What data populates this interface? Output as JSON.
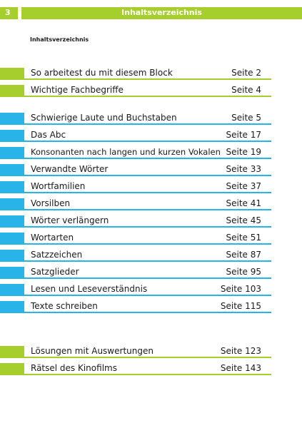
{
  "header": {
    "page_number": "3",
    "title": "Inhaltsverzeichnis"
  },
  "subtitle": "Inhaltsverzeichnis",
  "colors": {
    "green": "#a6cf2e",
    "blue": "#29b4e8"
  },
  "entries": [
    {
      "label": "So arbeitest du mit diesem Block",
      "page": "Seite 2",
      "color": "green"
    },
    {
      "label": "Wichtige Fachbegriffe",
      "page": "Seite 4",
      "color": "green"
    },
    {
      "label": "Schwierige Laute und Buchstaben",
      "page": "Seite 5",
      "color": "blue"
    },
    {
      "label": "Das Abc",
      "page": "Seite 17",
      "color": "blue"
    },
    {
      "label": "Konsonanten nach langen und kurzen Vokalen",
      "page": "Seite 19",
      "color": "blue"
    },
    {
      "label": "Verwandte Wörter",
      "page": "Seite 33",
      "color": "blue"
    },
    {
      "label": "Wortfamilien",
      "page": "Seite 37",
      "color": "blue"
    },
    {
      "label": "Vorsilben",
      "page": "Seite 41",
      "color": "blue"
    },
    {
      "label": "Wörter verlängern",
      "page": "Seite 45",
      "color": "blue"
    },
    {
      "label": "Wortarten",
      "page": "Seite 51",
      "color": "blue"
    },
    {
      "label": "Satzzeichen",
      "page": "Seite 87",
      "color": "blue"
    },
    {
      "label": "Satzglieder",
      "page": "Seite 95",
      "color": "blue"
    },
    {
      "label": "Lesen und Leseverständnis",
      "page": "Seite 103",
      "color": "blue"
    },
    {
      "label": "Texte schreiben",
      "page": "Seite 115",
      "color": "blue"
    },
    {
      "label": "Lösungen mit Auswertungen",
      "page": "Seite 123",
      "color": "green"
    },
    {
      "label": "Rätsel des Kinofilms",
      "page": "Seite 143",
      "color": "green"
    }
  ]
}
